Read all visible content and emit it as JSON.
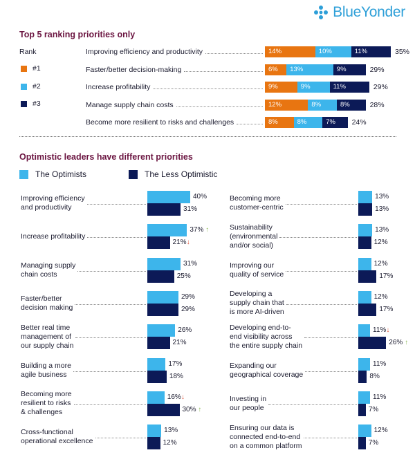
{
  "brand": {
    "name": "BlueYonder"
  },
  "colors": {
    "orange": "#E87511",
    "light": "#3DB5EB",
    "navy": "#0C1A57",
    "title": "#6B1541"
  },
  "section1": {
    "title": "Top 5 ranking priorities only",
    "rank_label": "Rank",
    "legend": [
      "#1",
      "#2",
      "#3"
    ]
  },
  "section2": {
    "title": "Optimistic leaders have different priorities",
    "legend": [
      "The Optimists",
      "The Less Optimistic"
    ]
  },
  "chart_data": [
    {
      "type": "bar",
      "orientation": "horizontal-stacked",
      "title": "Top 5 ranking priorities only",
      "series_names": [
        "#1",
        "#2",
        "#3"
      ],
      "categories": [
        "Improving efficiency and productivity",
        "Faster/better decision-making",
        "Increase profitability",
        "Manage supply chain costs",
        "Become more resilient to risks and challenges"
      ],
      "series": [
        {
          "name": "#1",
          "values": [
            14,
            6,
            9,
            12,
            8
          ]
        },
        {
          "name": "#2",
          "values": [
            10,
            13,
            9,
            8,
            8
          ]
        },
        {
          "name": "#3",
          "values": [
            11,
            9,
            11,
            8,
            7
          ]
        }
      ],
      "value_labels": [
        [
          "14%",
          "10%",
          "11%"
        ],
        [
          "6%",
          "13%",
          "9%"
        ],
        [
          "9%",
          "9%",
          "11%"
        ],
        [
          "12%",
          "8%",
          "8%"
        ],
        [
          "8%",
          "8%",
          "7%"
        ]
      ],
      "totals": [
        "35%",
        "29%",
        "29%",
        "28%",
        "24%"
      ]
    },
    {
      "type": "bar",
      "orientation": "horizontal-grouped",
      "title": "Optimistic leaders have different priorities",
      "series_names": [
        "The Optimists",
        "The Less Optimistic"
      ],
      "left": [
        {
          "label": "Improving efficiency and productivity",
          "lines": [
            "Improving efficiency",
            "and productivity"
          ],
          "values": [
            40,
            31
          ],
          "labels": [
            "40%",
            "31%"
          ],
          "arrows": [
            "",
            ""
          ]
        },
        {
          "label": "Increase profitability",
          "lines": [
            "Increase profitability"
          ],
          "values": [
            37,
            21
          ],
          "labels": [
            "37%",
            "21%"
          ],
          "arrows": [
            "up",
            "down"
          ]
        },
        {
          "label": "Managing supply chain costs",
          "lines": [
            "Managing supply",
            "chain costs"
          ],
          "values": [
            31,
            25
          ],
          "labels": [
            "31%",
            "25%"
          ],
          "arrows": [
            "",
            ""
          ]
        },
        {
          "label": "Faster/better decision making",
          "lines": [
            "Faster/better",
            "decision making"
          ],
          "values": [
            29,
            29
          ],
          "labels": [
            "29%",
            "29%"
          ],
          "arrows": [
            "",
            ""
          ]
        },
        {
          "label": "Better real time management of our supply chain",
          "lines": [
            "Better real time",
            "management of",
            "our supply chain"
          ],
          "values": [
            26,
            21
          ],
          "labels": [
            "26%",
            "21%"
          ],
          "arrows": [
            "",
            ""
          ]
        },
        {
          "label": "Building a more agile business",
          "lines": [
            "Building a more",
            "agile business"
          ],
          "values": [
            17,
            18
          ],
          "labels": [
            "17%",
            "18%"
          ],
          "arrows": [
            "",
            ""
          ]
        },
        {
          "label": "Becoming more resilient to risks & challenges",
          "lines": [
            "Becoming more",
            "resilient to risks",
            "& challenges"
          ],
          "values": [
            16,
            30
          ],
          "labels": [
            "16%",
            "30%"
          ],
          "arrows": [
            "down",
            "up"
          ]
        },
        {
          "label": "Cross-functional operational excellence",
          "lines": [
            "Cross-functional",
            "operational excellence"
          ],
          "values": [
            13,
            12
          ],
          "labels": [
            "13%",
            "12%"
          ],
          "arrows": [
            "",
            ""
          ]
        }
      ],
      "right": [
        {
          "label": "Becoming more customer-centric",
          "lines": [
            "Becoming more",
            "customer-centric"
          ],
          "values": [
            13,
            13
          ],
          "labels": [
            "13%",
            "13%"
          ],
          "arrows": [
            "",
            ""
          ]
        },
        {
          "label": "Sustainability (environmental and/or social)",
          "lines": [
            "Sustainability",
            "(environmental",
            "and/or social)"
          ],
          "values": [
            13,
            12
          ],
          "labels": [
            "13%",
            "12%"
          ],
          "arrows": [
            "",
            ""
          ]
        },
        {
          "label": "Improving our quality of service",
          "lines": [
            "Improving our",
            "quality of service"
          ],
          "values": [
            12,
            17
          ],
          "labels": [
            "12%",
            "17%"
          ],
          "arrows": [
            "",
            ""
          ]
        },
        {
          "label": "Developing a supply chain that is more AI-driven",
          "lines": [
            "Developing a",
            "supply chain that",
            "is more AI-driven"
          ],
          "values": [
            12,
            17
          ],
          "labels": [
            "12%",
            "17%"
          ],
          "arrows": [
            "",
            ""
          ]
        },
        {
          "label": "Developing end-to-end visibility across the entire supply chain",
          "lines": [
            "Developing end-to-",
            "end visibility across",
            "the entire supply chain"
          ],
          "values": [
            11,
            26
          ],
          "labels": [
            "11%",
            "26%"
          ],
          "arrows": [
            "down",
            "up"
          ]
        },
        {
          "label": "Expanding our geographical coverage",
          "lines": [
            "Expanding our",
            "geographical coverage"
          ],
          "values": [
            11,
            8
          ],
          "labels": [
            "11%",
            "8%"
          ],
          "arrows": [
            "",
            ""
          ]
        },
        {
          "label": "Investing in our people",
          "lines": [
            "Investing in",
            "our people"
          ],
          "values": [
            11,
            7
          ],
          "labels": [
            "11%",
            "7%"
          ],
          "arrows": [
            "",
            ""
          ]
        },
        {
          "label": "Ensuring our data is connected end-to-end on a common platform",
          "lines": [
            "Ensuring our data is",
            "connected end-to-end",
            "on a common platform"
          ],
          "values": [
            12,
            7
          ],
          "labels": [
            "12%",
            "7%"
          ],
          "arrows": [
            "",
            ""
          ]
        }
      ]
    }
  ]
}
